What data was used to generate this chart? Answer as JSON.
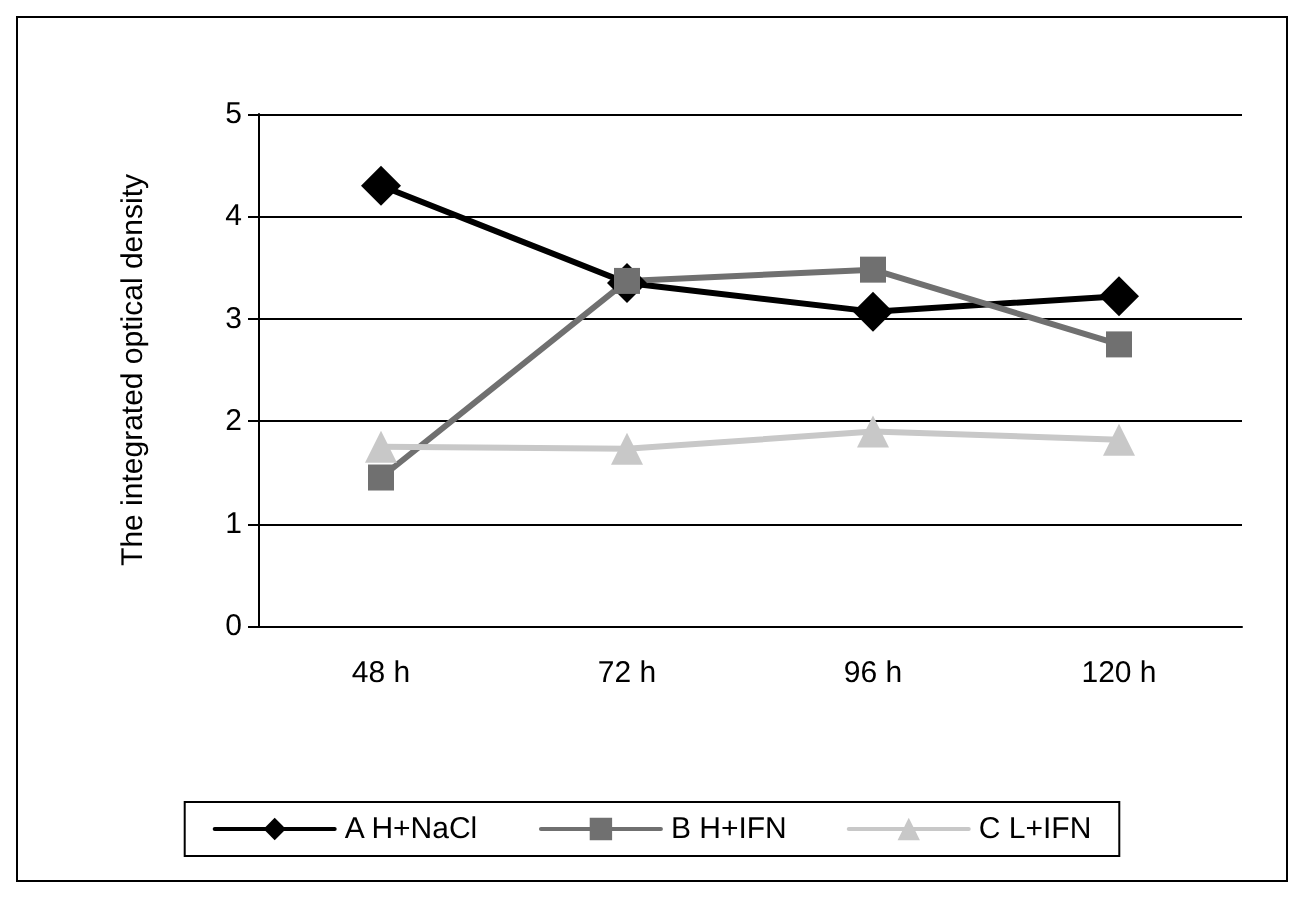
{
  "chart_data": {
    "type": "line",
    "ylabel": "The integrated optical density",
    "categories": [
      "48 h",
      "72 h",
      "96 h",
      "120 h"
    ],
    "series": [
      {
        "name": "A H+NaCl",
        "color": "#000000",
        "marker": "diamond",
        "values": [
          4.3,
          3.35,
          3.07,
          3.22
        ]
      },
      {
        "name": "B H+IFN",
        "color": "#707070",
        "marker": "square",
        "values": [
          1.45,
          3.37,
          3.48,
          2.75
        ]
      },
      {
        "name": "C L+IFN",
        "color": "#c8c8c8",
        "marker": "triangle",
        "values": [
          1.75,
          1.73,
          1.9,
          1.82
        ]
      }
    ],
    "ylim": [
      0,
      5
    ],
    "yticks": [
      0,
      1,
      2,
      3,
      4,
      5
    ],
    "grid": "y",
    "legend": "bottom"
  }
}
